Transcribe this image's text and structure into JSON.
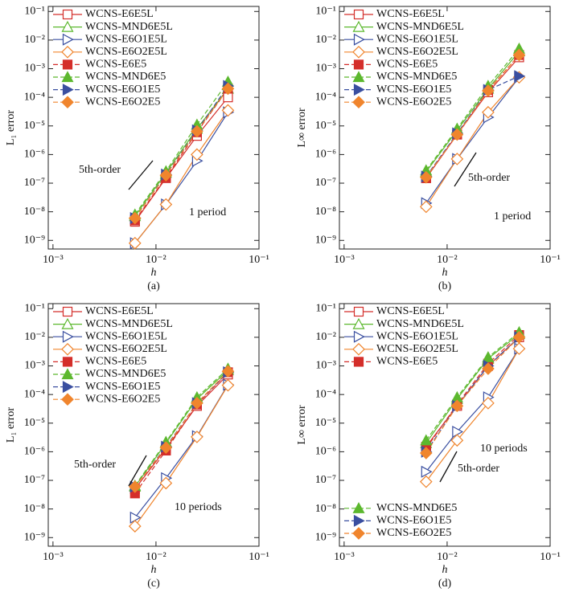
{
  "chart_data": [
    {
      "type": "line",
      "caption": "(a)",
      "xlabel": "h",
      "ylabel": "L₁ error",
      "xscale": "log",
      "yscale": "log",
      "xlim": [
        0.0009,
        0.1
      ],
      "ylim": [
        5e-10,
        0.15
      ],
      "xticks": [
        {
          "value": 0.001,
          "label": "10⁻³"
        },
        {
          "value": 0.01,
          "label": "10⁻²"
        },
        {
          "value": 0.1,
          "label": "10⁻¹"
        }
      ],
      "yticks": [
        {
          "value": 1e-09,
          "label": "10⁻⁹"
        },
        {
          "value": 1e-08,
          "label": "10⁻⁸"
        },
        {
          "value": 1e-07,
          "label": "10⁻⁷"
        },
        {
          "value": 1e-06,
          "label": "10⁻⁶"
        },
        {
          "value": 1e-05,
          "label": "10⁻⁵"
        },
        {
          "value": 0.0001,
          "label": "10⁻⁴"
        },
        {
          "value": 0.001,
          "label": "10⁻³"
        },
        {
          "value": 0.01,
          "label": "10⁻²"
        },
        {
          "value": 0.1,
          "label": "10⁻¹"
        }
      ],
      "x": [
        0.00625,
        0.0125,
        0.025,
        0.05
      ],
      "legend": "upper left",
      "series": [
        {
          "name": "WCNS-E6E5L",
          "color": "#d42e2a",
          "marker": "square",
          "filled": false,
          "linestyle": "solid",
          "values": [
            4.5e-09,
            1.5e-07,
            4.5e-06,
            0.0001
          ]
        },
        {
          "name": "WCNS-MND6E5L",
          "color": "#5cb82e",
          "marker": "triangle-up",
          "filled": false,
          "linestyle": "solid",
          "values": [
            7e-09,
            2.3e-07,
            8e-06,
            0.0002
          ]
        },
        {
          "name": "WCNS-E6O1E5L",
          "color": "#3a4fa0",
          "marker": "triangle-right",
          "filled": false,
          "linestyle": "solid",
          "values": [
            8e-10,
            1.8e-08,
            6e-07,
            3e-05
          ]
        },
        {
          "name": "WCNS-E6O2E5L",
          "color": "#f0852d",
          "marker": "diamond",
          "filled": false,
          "linestyle": "solid",
          "values": [
            8e-10,
            1.8e-08,
            1e-06,
            3.5e-05
          ]
        },
        {
          "name": "WCNS-E6E5",
          "color": "#d42e2a",
          "marker": "square",
          "filled": true,
          "linestyle": "dashed",
          "values": [
            5e-09,
            1.6e-07,
            6e-06,
            0.0002
          ]
        },
        {
          "name": "WCNS-MND6E5",
          "color": "#5cb82e",
          "marker": "triangle-up",
          "filled": true,
          "linestyle": "dashed",
          "values": [
            8e-09,
            2.6e-07,
            1.1e-05,
            0.00035
          ]
        },
        {
          "name": "WCNS-E6O1E5",
          "color": "#3a4fa0",
          "marker": "triangle-right",
          "filled": true,
          "linestyle": "dashed",
          "values": [
            6e-09,
            2e-07,
            7e-06,
            0.00025
          ]
        },
        {
          "name": "WCNS-E6O2E5",
          "color": "#f0852d",
          "marker": "diamond",
          "filled": true,
          "linestyle": "dashed",
          "values": [
            6e-09,
            1.9e-07,
            6.5e-06,
            0.0002
          ]
        }
      ],
      "annotations": [
        "5th-order",
        "1 period"
      ]
    },
    {
      "type": "line",
      "caption": "(b)",
      "xlabel": "h",
      "ylabel": "L∞ error",
      "xscale": "log",
      "yscale": "log",
      "xlim": [
        0.0009,
        0.1
      ],
      "ylim": [
        5e-10,
        0.15
      ],
      "xticks": [
        {
          "value": 0.001,
          "label": "10⁻³"
        },
        {
          "value": 0.01,
          "label": "10⁻²"
        },
        {
          "value": 0.1,
          "label": "10⁻¹"
        }
      ],
      "yticks": [
        {
          "value": 1e-09,
          "label": "10⁻⁹"
        },
        {
          "value": 1e-08,
          "label": "10⁻⁸"
        },
        {
          "value": 1e-07,
          "label": "10⁻⁷"
        },
        {
          "value": 1e-06,
          "label": "10⁻⁶"
        },
        {
          "value": 1e-05,
          "label": "10⁻⁵"
        },
        {
          "value": 0.0001,
          "label": "10⁻⁴"
        },
        {
          "value": 0.001,
          "label": "10⁻³"
        },
        {
          "value": 0.01,
          "label": "10⁻²"
        },
        {
          "value": 0.1,
          "label": "10⁻¹"
        }
      ],
      "x": [
        0.00625,
        0.0125,
        0.025,
        0.05
      ],
      "legend": "upper left",
      "series": [
        {
          "name": "WCNS-E6E5L",
          "color": "#d42e2a",
          "marker": "square",
          "filled": false,
          "linestyle": "solid",
          "values": [
            1.5e-07,
            5e-06,
            0.00015,
            0.0025
          ]
        },
        {
          "name": "WCNS-MND6E5L",
          "color": "#5cb82e",
          "marker": "triangle-up",
          "filled": false,
          "linestyle": "solid",
          "values": [
            2.5e-07,
            7e-06,
            0.0002,
            0.004
          ]
        },
        {
          "name": "WCNS-E6O1E5L",
          "color": "#3a4fa0",
          "marker": "triangle-right",
          "filled": false,
          "linestyle": "solid",
          "values": [
            2e-08,
            7e-07,
            2e-05,
            0.0005
          ]
        },
        {
          "name": "WCNS-E6O2E5L",
          "color": "#f0852d",
          "marker": "diamond",
          "filled": false,
          "linestyle": "solid",
          "values": [
            1.5e-08,
            7e-07,
            3e-05,
            0.0005
          ]
        },
        {
          "name": "WCNS-E6E5",
          "color": "#d42e2a",
          "marker": "square",
          "filled": true,
          "linestyle": "dashed",
          "values": [
            1.5e-07,
            5e-06,
            0.00018,
            0.003
          ]
        },
        {
          "name": "WCNS-MND6E5",
          "color": "#5cb82e",
          "marker": "triangle-up",
          "filled": true,
          "linestyle": "dashed",
          "values": [
            2.8e-07,
            8e-06,
            0.00025,
            0.005
          ]
        },
        {
          "name": "WCNS-E6O1E5",
          "color": "#3a4fa0",
          "marker": "triangle-right",
          "filled": true,
          "linestyle": "dashed",
          "values": [
            1.7e-07,
            5.5e-06,
            0.00018,
            0.00055
          ]
        },
        {
          "name": "WCNS-E6O2E5",
          "color": "#f0852d",
          "marker": "diamond",
          "filled": true,
          "linestyle": "dashed",
          "values": [
            1.6e-07,
            5e-06,
            0.00017,
            0.003
          ]
        }
      ],
      "annotations": [
        "5th-order",
        "1 period"
      ]
    },
    {
      "type": "line",
      "caption": "(c)",
      "xlabel": "h",
      "ylabel": "L₁ error",
      "xscale": "log",
      "yscale": "log",
      "xlim": [
        0.0009,
        0.1
      ],
      "ylim": [
        5e-10,
        0.15
      ],
      "xticks": [
        {
          "value": 0.001,
          "label": "10⁻³"
        },
        {
          "value": 0.01,
          "label": "10⁻²"
        },
        {
          "value": 0.1,
          "label": "10⁻¹"
        }
      ],
      "yticks": [
        {
          "value": 1e-09,
          "label": "10⁻⁹"
        },
        {
          "value": 1e-08,
          "label": "10⁻⁸"
        },
        {
          "value": 1e-07,
          "label": "10⁻⁷"
        },
        {
          "value": 1e-06,
          "label": "10⁻⁶"
        },
        {
          "value": 1e-05,
          "label": "10⁻⁵"
        },
        {
          "value": 0.0001,
          "label": "10⁻⁴"
        },
        {
          "value": 0.001,
          "label": "10⁻³"
        },
        {
          "value": 0.01,
          "label": "10⁻²"
        },
        {
          "value": 0.1,
          "label": "10⁻¹"
        }
      ],
      "x": [
        0.00625,
        0.0125,
        0.025,
        0.05
      ],
      "legend": "upper left",
      "series": [
        {
          "name": "WCNS-E6E5L",
          "color": "#d42e2a",
          "marker": "square",
          "filled": false,
          "linestyle": "solid",
          "values": [
            5e-08,
            1.3e-06,
            4e-05,
            0.0005
          ]
        },
        {
          "name": "WCNS-MND6E5L",
          "color": "#5cb82e",
          "marker": "triangle-up",
          "filled": false,
          "linestyle": "solid",
          "values": [
            6e-08,
            2e-06,
            7e-05,
            0.0007
          ]
        },
        {
          "name": "WCNS-E6O1E5L",
          "color": "#3a4fa0",
          "marker": "triangle-right",
          "filled": false,
          "linestyle": "solid",
          "values": [
            5e-09,
            1.2e-07,
            3.5e-06,
            0.00022
          ]
        },
        {
          "name": "WCNS-E6O2E5L",
          "color": "#f0852d",
          "marker": "diamond",
          "filled": false,
          "linestyle": "solid",
          "values": [
            2.5e-09,
            8e-08,
            3.3e-06,
            0.00021
          ]
        },
        {
          "name": "WCNS-E6E5",
          "color": "#d42e2a",
          "marker": "square",
          "filled": true,
          "linestyle": "dashed",
          "values": [
            3.5e-08,
            1.1e-06,
            4.5e-05,
            0.0006
          ]
        },
        {
          "name": "WCNS-MND6E5",
          "color": "#5cb82e",
          "marker": "triangle-up",
          "filled": true,
          "linestyle": "dashed",
          "values": [
            6.5e-08,
            2.2e-06,
            8e-05,
            0.0008
          ]
        },
        {
          "name": "WCNS-E6O1E5",
          "color": "#3a4fa0",
          "marker": "triangle-right",
          "filled": true,
          "linestyle": "dashed",
          "values": [
            6e-08,
            1.5e-06,
            5e-05,
            0.0006
          ]
        },
        {
          "name": "WCNS-E6O2E5",
          "color": "#f0852d",
          "marker": "diamond",
          "filled": true,
          "linestyle": "dashed",
          "values": [
            6e-08,
            1.4e-06,
            5e-05,
            0.00065
          ]
        }
      ],
      "annotations": [
        "5th-order",
        "10 periods"
      ]
    },
    {
      "type": "line",
      "caption": "(d)",
      "xlabel": "h",
      "ylabel": "L∞ error",
      "xscale": "log",
      "yscale": "log",
      "xlim": [
        0.0009,
        0.1
      ],
      "ylim": [
        5e-10,
        0.15
      ],
      "xticks": [
        {
          "value": 0.001,
          "label": "10⁻³"
        },
        {
          "value": 0.01,
          "label": "10⁻²"
        },
        {
          "value": 0.1,
          "label": "10⁻¹"
        }
      ],
      "yticks": [
        {
          "value": 1e-09,
          "label": "10⁻⁹"
        },
        {
          "value": 1e-08,
          "label": "10⁻⁸"
        },
        {
          "value": 1e-07,
          "label": "10⁻⁷"
        },
        {
          "value": 1e-06,
          "label": "10⁻⁶"
        },
        {
          "value": 1e-05,
          "label": "10⁻⁵"
        },
        {
          "value": 0.0001,
          "label": "10⁻⁴"
        },
        {
          "value": 0.001,
          "label": "10⁻³"
        },
        {
          "value": 0.01,
          "label": "10⁻²"
        },
        {
          "value": 0.1,
          "label": "10⁻¹"
        }
      ],
      "x": [
        0.00625,
        0.0125,
        0.025,
        0.05
      ],
      "legend": "upper left",
      "legend_split": 5,
      "legend2": "lower left",
      "series": [
        {
          "name": "WCNS-E6E5L",
          "color": "#d42e2a",
          "marker": "square",
          "filled": false,
          "linestyle": "solid",
          "values": [
            1.5e-06,
            4e-05,
            0.001,
            0.01
          ]
        },
        {
          "name": "WCNS-MND6E5L",
          "color": "#5cb82e",
          "marker": "triangle-up",
          "filled": false,
          "linestyle": "solid",
          "values": [
            2e-06,
            7e-05,
            0.0018,
            0.013
          ]
        },
        {
          "name": "WCNS-E6O1E5L",
          "color": "#3a4fa0",
          "marker": "triangle-right",
          "filled": false,
          "linestyle": "solid",
          "values": [
            2e-07,
            5e-06,
            8e-05,
            0.004
          ]
        },
        {
          "name": "WCNS-E6O2E5L",
          "color": "#f0852d",
          "marker": "diamond",
          "filled": false,
          "linestyle": "solid",
          "values": [
            9e-08,
            2.5e-06,
            5e-05,
            0.004
          ]
        },
        {
          "name": "WCNS-E6E5",
          "color": "#d42e2a",
          "marker": "square",
          "filled": true,
          "linestyle": "dashed",
          "values": [
            1.3e-06,
            4.5e-05,
            0.0012,
            0.012
          ]
        },
        {
          "name": "WCNS-MND6E5",
          "color": "#5cb82e",
          "marker": "triangle-up",
          "filled": true,
          "linestyle": "dashed",
          "values": [
            2.5e-06,
            8e-05,
            0.002,
            0.015
          ]
        },
        {
          "name": "WCNS-E6O1E5",
          "color": "#3a4fa0",
          "marker": "triangle-right",
          "filled": true,
          "linestyle": "dashed",
          "values": [
            1e-06,
            4e-05,
            0.001,
            0.01
          ]
        },
        {
          "name": "WCNS-E6O2E5",
          "color": "#f0852d",
          "marker": "diamond",
          "filled": true,
          "linestyle": "dashed",
          "values": [
            9e-07,
            4e-05,
            0.0008,
            0.01
          ]
        }
      ],
      "annotations": [
        "10 periods",
        "5th-order"
      ]
    }
  ]
}
